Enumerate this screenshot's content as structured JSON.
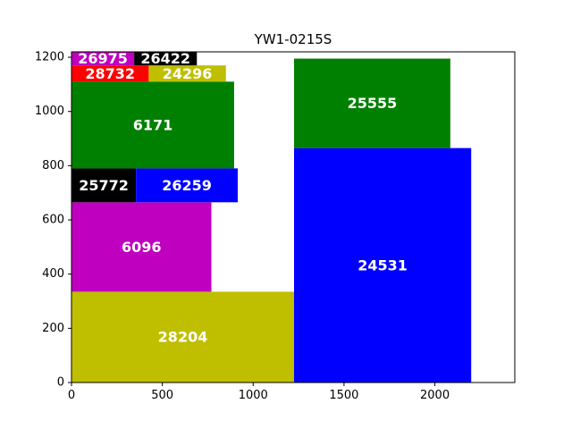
{
  "chart_data": {
    "type": "rectangle-packing",
    "title": "YW1-0215S",
    "xlabel": "",
    "ylabel": "",
    "xlim": [
      0,
      2440
    ],
    "ylim": [
      0,
      1220
    ],
    "xticks": [
      0,
      500,
      1000,
      1500,
      2000
    ],
    "yticks": [
      0,
      200,
      400,
      600,
      800,
      1000,
      1200
    ],
    "grid": false,
    "rects": [
      {
        "label": "28204",
        "x": 0,
        "y": 0,
        "w": 1225,
        "h": 335,
        "color": "#bfbf00",
        "text_color": "#ffffff"
      },
      {
        "label": "6096",
        "x": 0,
        "y": 335,
        "w": 770,
        "h": 330,
        "color": "#bf00bf",
        "text_color": "#ffffff"
      },
      {
        "label": "25772",
        "x": 0,
        "y": 665,
        "w": 355,
        "h": 125,
        "color": "#000000",
        "text_color": "#ffffff"
      },
      {
        "label": "26259",
        "x": 355,
        "y": 665,
        "w": 560,
        "h": 125,
        "color": "#0000ff",
        "text_color": "#ffffff"
      },
      {
        "label": "6171",
        "x": 0,
        "y": 790,
        "w": 895,
        "h": 320,
        "color": "#008000",
        "text_color": "#ffffff"
      },
      {
        "label": "28732",
        "x": 0,
        "y": 1110,
        "w": 425,
        "h": 60,
        "color": "#ff0000",
        "text_color": "#ffffff"
      },
      {
        "label": "24296",
        "x": 425,
        "y": 1110,
        "w": 425,
        "h": 60,
        "color": "#bfbf00",
        "text_color": "#ffffff"
      },
      {
        "label": "26975",
        "x": 0,
        "y": 1170,
        "w": 345,
        "h": 50,
        "color": "#bf00bf",
        "text_color": "#ffffff"
      },
      {
        "label": "26422",
        "x": 345,
        "y": 1170,
        "w": 345,
        "h": 50,
        "color": "#000000",
        "text_color": "#ffffff"
      },
      {
        "label": "24531",
        "x": 1225,
        "y": 0,
        "w": 975,
        "h": 865,
        "color": "#0000ff",
        "text_color": "#ffffff"
      },
      {
        "label": "25555",
        "x": 1225,
        "y": 865,
        "w": 860,
        "h": 330,
        "color": "#008000",
        "text_color": "#ffffff"
      }
    ]
  }
}
